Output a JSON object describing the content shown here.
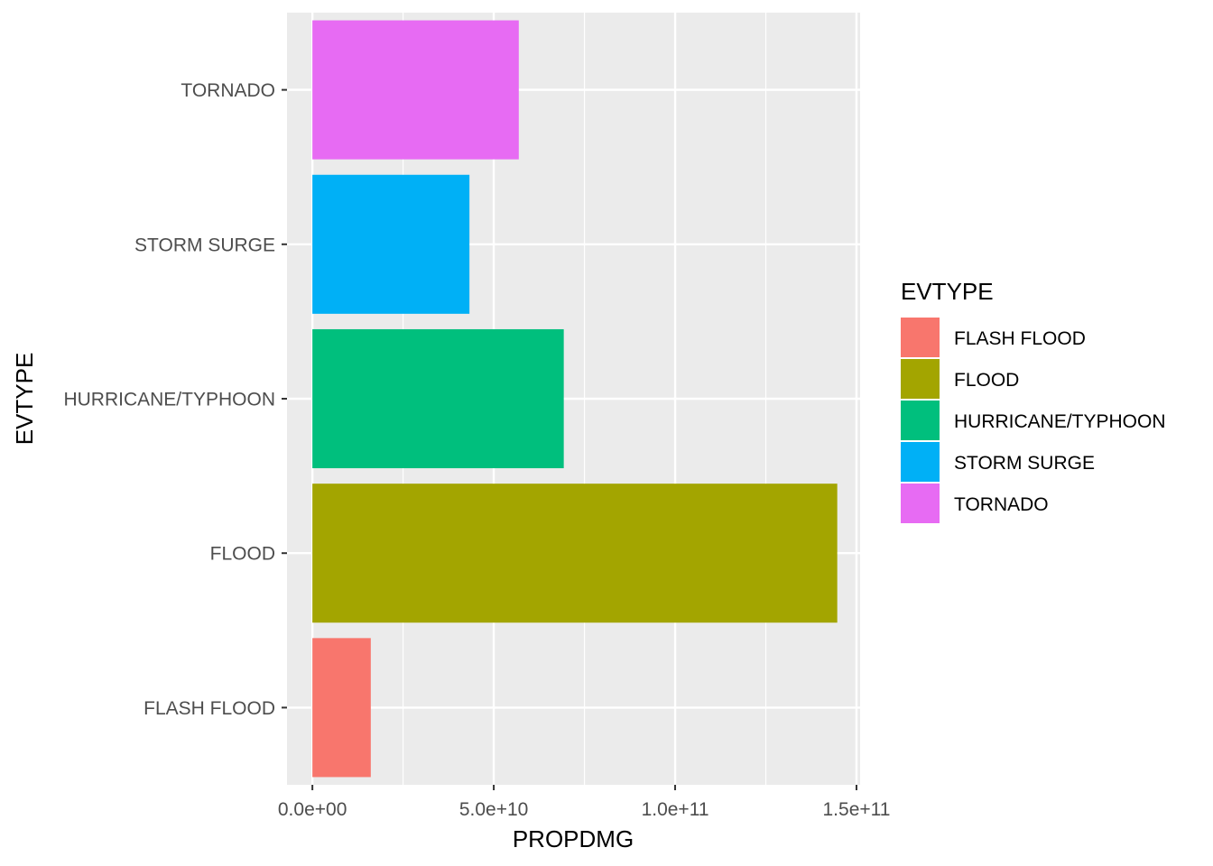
{
  "chart_data": {
    "type": "bar",
    "orientation": "horizontal",
    "categories": [
      "FLASH FLOOD",
      "FLOOD",
      "HURRICANE/TYPHOON",
      "STORM SURGE",
      "TORNADO"
    ],
    "values": [
      16100000000,
      144700000000,
      69300000000,
      43300000000,
      56900000000
    ],
    "colors": [
      "#F8766D",
      "#A3A500",
      "#00BF7D",
      "#00B0F6",
      "#E76BF3"
    ],
    "xlabel": "PROPDMG",
    "ylabel": "EVTYPE",
    "xlim": [
      -7000000000,
      151000000000
    ],
    "x_ticks": [
      0,
      50000000000,
      100000000000,
      150000000000
    ],
    "x_tick_labels": [
      "0.0e+00",
      "5.0e+10",
      "1.0e+11",
      "1.5e+11"
    ],
    "grid": true,
    "panel_background": "#EBEBEB",
    "legend": {
      "title": "EVTYPE",
      "placement": "right",
      "items": [
        "FLASH FLOOD",
        "FLOOD",
        "HURRICANE/TYPHOON",
        "STORM SURGE",
        "TORNADO"
      ]
    }
  }
}
